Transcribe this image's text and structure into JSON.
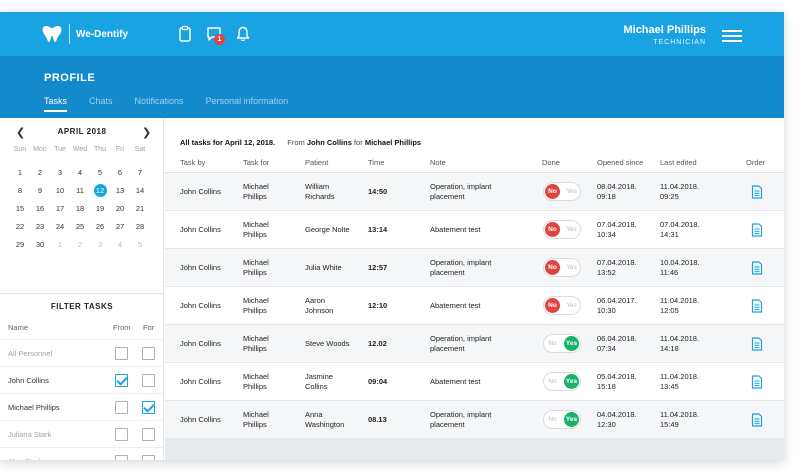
{
  "header": {
    "brand": "We-Dentify",
    "user_name": "Michael Phillips",
    "user_role": "TECHNICIAN",
    "chat_badge": "1"
  },
  "profile": {
    "title": "PROFILE",
    "tabs": [
      {
        "label": "Tasks",
        "active": true
      },
      {
        "label": "Chats",
        "active": false
      },
      {
        "label": "Notifications",
        "active": false
      },
      {
        "label": "Personal information",
        "active": false
      }
    ]
  },
  "calendar": {
    "prev": "❮",
    "next": "❯",
    "month": "APRIL 2018",
    "weekdays": [
      "Sun",
      "Mon",
      "Tue",
      "Wed",
      "Thu",
      "Fri",
      "Sat"
    ],
    "weeks": [
      [
        {
          "d": "1"
        },
        {
          "d": "2"
        },
        {
          "d": "3"
        },
        {
          "d": "4"
        },
        {
          "d": "5"
        },
        {
          "d": "6"
        },
        {
          "d": "7"
        }
      ],
      [
        {
          "d": "8"
        },
        {
          "d": "9"
        },
        {
          "d": "10"
        },
        {
          "d": "11"
        },
        {
          "d": "12"
        },
        {
          "d": "13"
        },
        {
          "d": "14"
        }
      ],
      [
        {
          "d": "15"
        },
        {
          "d": "16"
        },
        {
          "d": "17"
        },
        {
          "d": "18"
        },
        {
          "d": "19"
        },
        {
          "d": "20"
        },
        {
          "d": "21"
        }
      ],
      [
        {
          "d": "22"
        },
        {
          "d": "23"
        },
        {
          "d": "24"
        },
        {
          "d": "25"
        },
        {
          "d": "26"
        },
        {
          "d": "27"
        },
        {
          "d": "28"
        }
      ],
      [
        {
          "d": "29"
        },
        {
          "d": "30"
        },
        {
          "d": "1"
        },
        {
          "d": "2"
        },
        {
          "d": "3"
        },
        {
          "d": "4"
        },
        {
          "d": "5"
        }
      ]
    ],
    "selected_day": "12"
  },
  "filter": {
    "title": "FILTER TASKS",
    "col_name": "Name",
    "col_from": "From",
    "col_for": "For",
    "people": [
      {
        "name": "All Personnel",
        "muted": true,
        "from": false,
        "for": false
      },
      {
        "name": "John Collins",
        "muted": false,
        "from": true,
        "for": false
      },
      {
        "name": "Michael Phillips",
        "muted": false,
        "from": false,
        "for": true
      },
      {
        "name": "Juliana Stark",
        "muted": true,
        "from": false,
        "for": false
      },
      {
        "name": "Alec Stark",
        "muted": true,
        "from": false,
        "for": false
      }
    ]
  },
  "tasks": {
    "title_prefix": "All tasks for April 12, 2018.",
    "from_label": "From",
    "from_name": "John Collins",
    "for_label": "for",
    "for_name": "Michael Phillips",
    "columns": {
      "task_by": "Task by",
      "task_for": "Task for",
      "patient": "Patient",
      "time": "Time",
      "note": "Note",
      "done": "Done",
      "opened": "Opened since",
      "edited": "Last edited",
      "order": "Order"
    },
    "rows": [
      {
        "task_by": "John Collins",
        "task_for": [
          "Michael",
          "Phillips"
        ],
        "patient": [
          "William",
          "Richards"
        ],
        "time": "14:50",
        "note": [
          "Operation, implant",
          "placement"
        ],
        "done": false,
        "opened": [
          "08.04.2018.",
          "09:18"
        ],
        "edited": [
          "11.04.2018.",
          "09:25"
        ]
      },
      {
        "task_by": "John Collins",
        "task_for": [
          "Michael",
          "Phillips"
        ],
        "patient": [
          "George Nolte"
        ],
        "time": "13:14",
        "note": [
          "Abatement test"
        ],
        "done": false,
        "opened": [
          "07.04.2018.",
          "10:34"
        ],
        "edited": [
          "07.04.2018.",
          "14:31"
        ]
      },
      {
        "task_by": "John Collins",
        "task_for": [
          "Michael",
          "Phillips"
        ],
        "patient": [
          "Julia White"
        ],
        "time": "12:57",
        "note": [
          "Operation, implant",
          "placement"
        ],
        "done": false,
        "opened": [
          "07.04.2018.",
          "13:52"
        ],
        "edited": [
          "10.04.2018.",
          "11:46"
        ]
      },
      {
        "task_by": "John Collins",
        "task_for": [
          "Michael",
          "Phillips"
        ],
        "patient": [
          "Aaron",
          "Johnson"
        ],
        "time": "12:10",
        "note": [
          "Abatement test"
        ],
        "done": false,
        "opened": [
          "06.04.2017.",
          "10:30"
        ],
        "edited": [
          "11.04.2018.",
          "12:05"
        ]
      },
      {
        "task_by": "John Collins",
        "task_for": [
          "Michael",
          "Phillips"
        ],
        "patient": [
          "Steve Woods"
        ],
        "time": "12.02",
        "note": [
          "Operation, implant",
          "placement"
        ],
        "done": true,
        "opened": [
          "06.04.2018.",
          "07:34"
        ],
        "edited": [
          "11.04.2018.",
          "14:18"
        ]
      },
      {
        "task_by": "John Collins",
        "task_for": [
          "Michael",
          "Phillips"
        ],
        "patient": [
          "Jasmine",
          "Collins"
        ],
        "time": "09:04",
        "note": [
          "Abatement test"
        ],
        "done": true,
        "opened": [
          "05.04.2018.",
          "15:18"
        ],
        "edited": [
          "11.04.2018.",
          "13:45"
        ]
      },
      {
        "task_by": "John Collins",
        "task_for": [
          "Michael",
          "Phillips"
        ],
        "patient": [
          "Anna",
          "Washington"
        ],
        "time": "08.13",
        "note": [
          "Operation, implant",
          "placement"
        ],
        "done": true,
        "opened": [
          "04.04.2018.",
          "12:30"
        ],
        "edited": [
          "11.04.2018.",
          "15:49"
        ]
      }
    ],
    "toggle_no": "No",
    "toggle_yes": "Yes"
  },
  "colors": {
    "topbar": "#1aa3e3",
    "profilebar": "#128acb",
    "no": "#e0443f",
    "yes": "#19b26b",
    "accent": "#1aa3e3"
  }
}
